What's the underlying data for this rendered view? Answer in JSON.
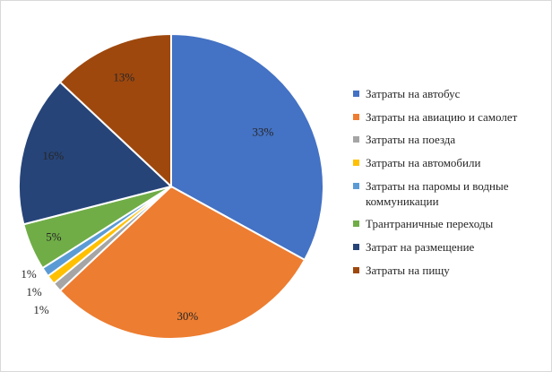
{
  "chart_data": {
    "type": "pie",
    "title": "",
    "legend_position": "right",
    "categories": [
      "Затраты на автобус",
      "Затраты на авиацию и самолет",
      "Затраты на поезда",
      "Затраты на автомобили",
      "Затраты на паромы и водные коммуникации",
      "Трантраничные переходы",
      "Затрат на размещение",
      "Затраты на пищу"
    ],
    "values": [
      33,
      30,
      1,
      1,
      1,
      5,
      16,
      13
    ],
    "labels": [
      "33%",
      "30%",
      "1%",
      "1%",
      "1%",
      "5%",
      "16%",
      "13%"
    ],
    "colors": [
      "#4472c4",
      "#ed7d31",
      "#a5a5a5",
      "#ffc000",
      "#5b9bd5",
      "#70ad47",
      "#264478",
      "#9e480e"
    ]
  }
}
